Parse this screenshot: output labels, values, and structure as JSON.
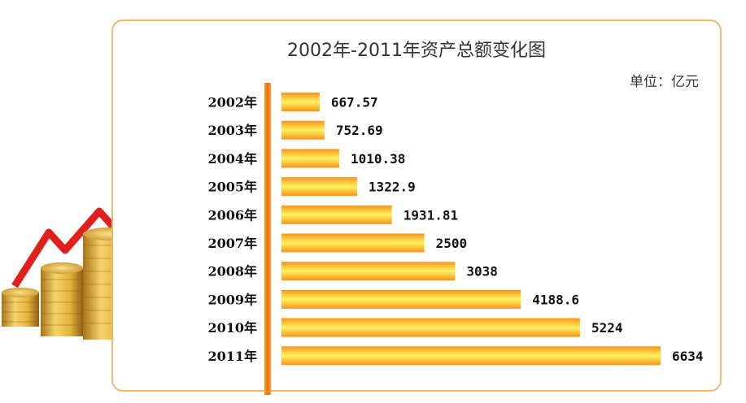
{
  "chart_data": {
    "type": "bar",
    "orientation": "horizontal",
    "title": "2002年-2011年资产总额变化图",
    "unit": "单位：亿元",
    "categories": [
      "2002年",
      "2003年",
      "2004年",
      "2005年",
      "2006年",
      "2007年",
      "2008年",
      "2009年",
      "2010年",
      "2011年"
    ],
    "values": [
      667.57,
      752.69,
      1010.38,
      1322.9,
      1931.81,
      2500,
      3038,
      4188.6,
      5224,
      6634
    ],
    "value_labels": [
      "667.57",
      "752.69",
      "1010.38",
      "1322.9",
      "1931.81",
      "2500",
      "3038",
      "4188.6",
      "5224",
      "6634"
    ],
    "xlim": [
      0,
      6634
    ],
    "grid": false,
    "legend": "none",
    "colors": {
      "bar_edge": "#f7931e",
      "bar_center": "#fff35c",
      "axis": "#f07d12",
      "border": "#f1b870",
      "arrow": "#e0201d",
      "coin": "#e3b23c"
    }
  }
}
